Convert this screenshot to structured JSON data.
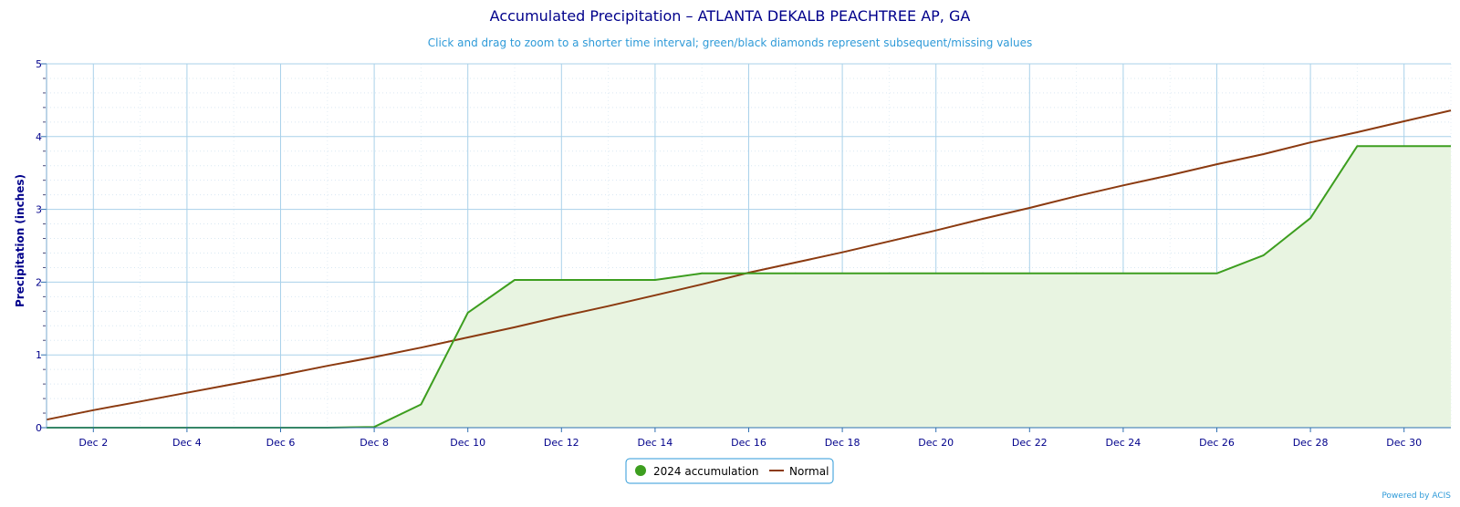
{
  "chart_data": {
    "type": "line",
    "title": "Accumulated Precipitation – ATLANTA DEKALB PEACHTREE AP, GA",
    "subtitle": "Click and drag to zoom to a shorter time interval; green/black diamonds represent subsequent/missing values",
    "ylabel": "Precipitation (inches)",
    "xlabel": "",
    "ylim": [
      0,
      5
    ],
    "yticks": [
      "0",
      "1",
      "2",
      "3",
      "4",
      "5"
    ],
    "xlim": [
      1,
      31
    ],
    "xticks": [
      {
        "day": 2,
        "label": "Dec 2"
      },
      {
        "day": 4,
        "label": "Dec 4"
      },
      {
        "day": 6,
        "label": "Dec 6"
      },
      {
        "day": 8,
        "label": "Dec 8"
      },
      {
        "day": 10,
        "label": "Dec 10"
      },
      {
        "day": 12,
        "label": "Dec 12"
      },
      {
        "day": 14,
        "label": "Dec 14"
      },
      {
        "day": 16,
        "label": "Dec 16"
      },
      {
        "day": 18,
        "label": "Dec 18"
      },
      {
        "day": 20,
        "label": "Dec 20"
      },
      {
        "day": 22,
        "label": "Dec 22"
      },
      {
        "day": 24,
        "label": "Dec 24"
      },
      {
        "day": 26,
        "label": "Dec 26"
      },
      {
        "day": 28,
        "label": "Dec 28"
      },
      {
        "day": 30,
        "label": "Dec 30"
      }
    ],
    "grid": true,
    "legend_position": "bottom-center",
    "series": [
      {
        "name": "2024 accumulation",
        "color": "#3d9e1f",
        "fill": "#e8f4e1",
        "marker": "circle",
        "x": [
          1,
          2,
          3,
          4,
          5,
          6,
          7,
          8,
          9,
          10,
          11,
          12,
          13,
          14,
          15,
          16,
          17,
          18,
          19,
          20,
          21,
          22,
          23,
          24,
          25,
          26,
          27,
          28,
          29,
          30,
          31
        ],
        "values": [
          0,
          0,
          0,
          0,
          0,
          0,
          0,
          0.01,
          0.32,
          1.58,
          2.03,
          2.03,
          2.03,
          2.03,
          2.12,
          2.12,
          2.12,
          2.12,
          2.12,
          2.12,
          2.12,
          2.12,
          2.12,
          2.12,
          2.12,
          2.12,
          2.37,
          2.88,
          3.87,
          3.87,
          3.87
        ]
      },
      {
        "name": "Normal",
        "color": "#8b3a10",
        "marker": "line",
        "x": [
          1,
          2,
          3,
          4,
          5,
          6,
          7,
          8,
          9,
          10,
          11,
          12,
          13,
          14,
          15,
          16,
          17,
          18,
          19,
          20,
          21,
          22,
          23,
          24,
          25,
          26,
          27,
          28,
          29,
          30,
          31
        ],
        "values": [
          0.11,
          0.24,
          0.36,
          0.48,
          0.6,
          0.72,
          0.85,
          0.97,
          1.1,
          1.24,
          1.38,
          1.53,
          1.67,
          1.82,
          1.97,
          2.13,
          2.27,
          2.41,
          2.56,
          2.71,
          2.87,
          3.02,
          3.18,
          3.33,
          3.47,
          3.62,
          3.76,
          3.92,
          4.06,
          4.21,
          4.36
        ]
      }
    ]
  },
  "credit": "Powered by ACIS"
}
